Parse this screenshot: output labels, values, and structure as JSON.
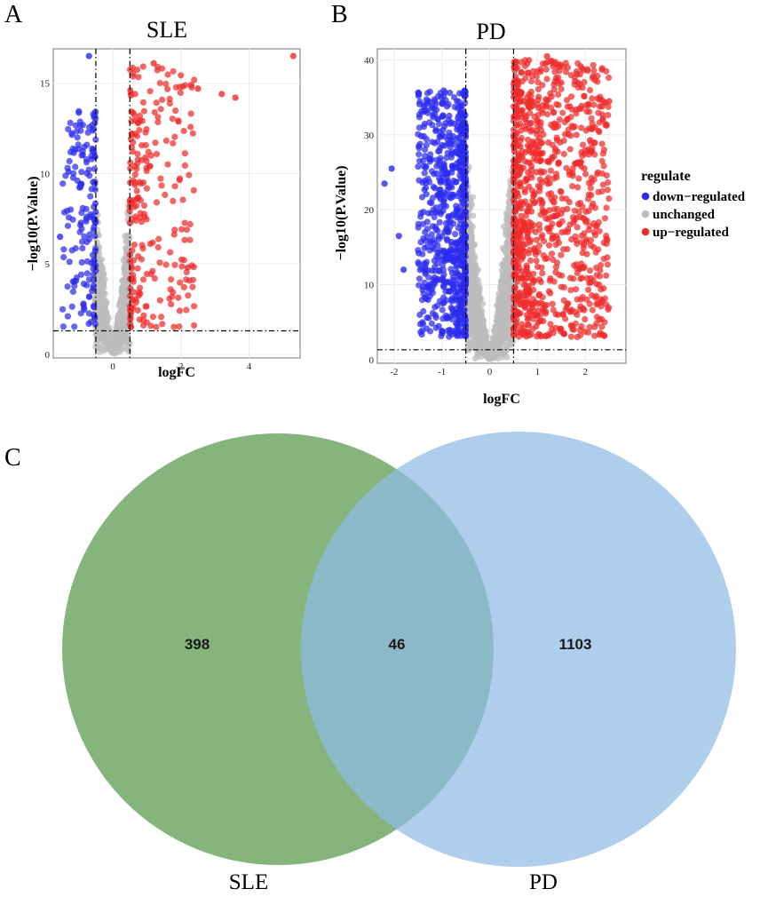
{
  "panel_letters": {
    "a": "A",
    "b": "B",
    "c": "C"
  },
  "colors": {
    "down": "#2b2bee",
    "unchanged": "#bdbdbd",
    "up": "#ee2b2b",
    "grid": "#ebebeb",
    "venn_sle": "#6aa360",
    "venn_pd": "#8fbbe3"
  },
  "legend": {
    "title": "regulate",
    "items": [
      {
        "label": "down−regulated",
        "key": "down"
      },
      {
        "label": "unchanged",
        "key": "unchanged"
      },
      {
        "label": "up−regulated",
        "key": "up"
      }
    ]
  },
  "chart_data": [
    {
      "type": "scatter",
      "title": "SLE",
      "xlabel": "logFC",
      "ylabel": "−log10(P.Value)",
      "xlim": [
        -1.75,
        5.5
      ],
      "ylim": [
        -0.2,
        16.9
      ],
      "xticks": [
        0,
        2,
        4
      ],
      "yticks": [
        0,
        5,
        10,
        15
      ],
      "thresholds": {
        "logfc": [
          -0.5,
          0.5
        ],
        "neglog10p": 1.3
      },
      "series": [
        {
          "name": "down−regulated",
          "generated_points": 160,
          "x_range": [
            -1.5,
            -0.5
          ],
          "y_range": [
            1.5,
            13.5
          ]
        },
        {
          "name": "unchanged",
          "generated_points": 900,
          "x_range": [
            -0.5,
            0.5
          ],
          "y_range": [
            0,
            9.5
          ]
        },
        {
          "name": "up−regulated",
          "generated_points": 240,
          "x_range": [
            0.5,
            2.4
          ],
          "y_range": [
            1.5,
            16
          ]
        }
      ],
      "outliers": [
        {
          "x": 5.3,
          "y": 16.5
        },
        {
          "x": 3.6,
          "y": 14.2
        },
        {
          "x": 3.2,
          "y": 14.4
        },
        {
          "x": 2.5,
          "y": 14.7
        },
        {
          "x": 2.3,
          "y": 14.9
        },
        {
          "x": 1.2,
          "y": 16.1
        },
        {
          "x": -0.7,
          "y": 16.5
        },
        {
          "x": -1.3,
          "y": 10.1
        },
        {
          "x": -1.55,
          "y": 6.5
        },
        {
          "x": 2.2,
          "y": 4.8
        }
      ]
    },
    {
      "type": "scatter",
      "title": "PD",
      "xlabel": "logFC",
      "ylabel": "−log10(P.Value)",
      "xlim": [
        -2.35,
        2.85
      ],
      "ylim": [
        -0.5,
        41.5
      ],
      "xticks": [
        -2,
        -1,
        0,
        1,
        2
      ],
      "yticks": [
        0,
        10,
        20,
        30,
        40
      ],
      "thresholds": {
        "logfc": [
          -0.5,
          0.5
        ],
        "neglog10p": 1.3
      },
      "series": [
        {
          "name": "down−regulated",
          "generated_points": 750,
          "x_range": [
            -1.5,
            -0.5
          ],
          "y_range": [
            3,
            36
          ]
        },
        {
          "name": "unchanged",
          "generated_points": 1800,
          "x_range": [
            -0.5,
            0.5
          ],
          "y_range": [
            0,
            34
          ]
        },
        {
          "name": "up−regulated",
          "generated_points": 1000,
          "x_range": [
            0.5,
            2.5
          ],
          "y_range": [
            3,
            40
          ]
        }
      ],
      "outliers": [
        {
          "x": -2.2,
          "y": 23.5
        },
        {
          "x": -2.05,
          "y": 25.5
        },
        {
          "x": -1.9,
          "y": 16.5
        },
        {
          "x": -1.8,
          "y": 12.0
        },
        {
          "x": 1.2,
          "y": 40.5
        },
        {
          "x": 2.5,
          "y": 34.5
        },
        {
          "x": 2.35,
          "y": 33.8
        },
        {
          "x": 2.2,
          "y": 31.0
        },
        {
          "x": 2.1,
          "y": 29.3
        }
      ]
    }
  ],
  "venn": {
    "sets": [
      {
        "name": "SLE",
        "only_count": "398"
      },
      {
        "name": "PD",
        "only_count": "1103"
      }
    ],
    "intersection": "46"
  }
}
